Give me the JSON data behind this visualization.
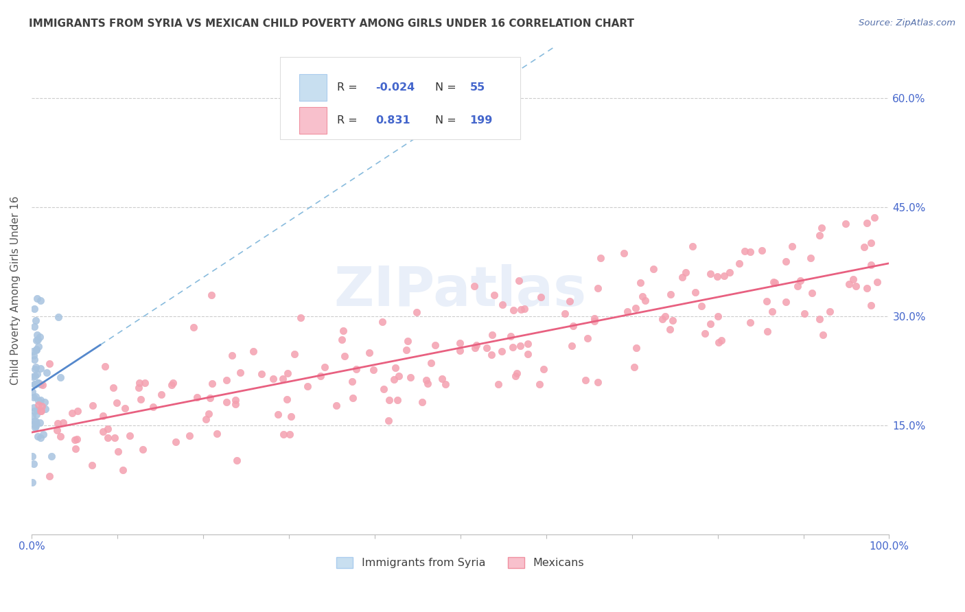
{
  "title": "IMMIGRANTS FROM SYRIA VS MEXICAN CHILD POVERTY AMONG GIRLS UNDER 16 CORRELATION CHART",
  "source": "Source: ZipAtlas.com",
  "ylabel": "Child Poverty Among Girls Under 16",
  "xlim": [
    0,
    100
  ],
  "ylim": [
    0,
    67
  ],
  "xtick_labels": [
    "0.0%",
    "",
    "",
    "",
    "",
    "",
    "",
    "",
    "",
    "",
    "100.0%"
  ],
  "xtick_vals": [
    0,
    10,
    20,
    30,
    40,
    50,
    60,
    70,
    80,
    90,
    100
  ],
  "ytick_labels_right": [
    "15.0%",
    "30.0%",
    "45.0%",
    "60.0%"
  ],
  "ytick_vals": [
    15,
    30,
    45,
    60
  ],
  "syria_color": "#a8c4e0",
  "mexico_color": "#f4a0b0",
  "syria_line_color": "#5588cc",
  "mexico_line_color": "#e86080",
  "syria_line_dash": "solid",
  "syria_dash_line_color": "#99bbdd",
  "R_syria": -0.024,
  "N_syria": 55,
  "R_mexico": 0.831,
  "N_mexico": 199,
  "background_color": "#ffffff",
  "grid_color": "#cccccc",
  "legend_text_color": "#4466cc",
  "legend_box_color_syria": "#c8dff0",
  "legend_box_color_mexico": "#f8c0cc",
  "watermark_text": "ZIPatlas",
  "watermark_color": "#c8d8f0"
}
